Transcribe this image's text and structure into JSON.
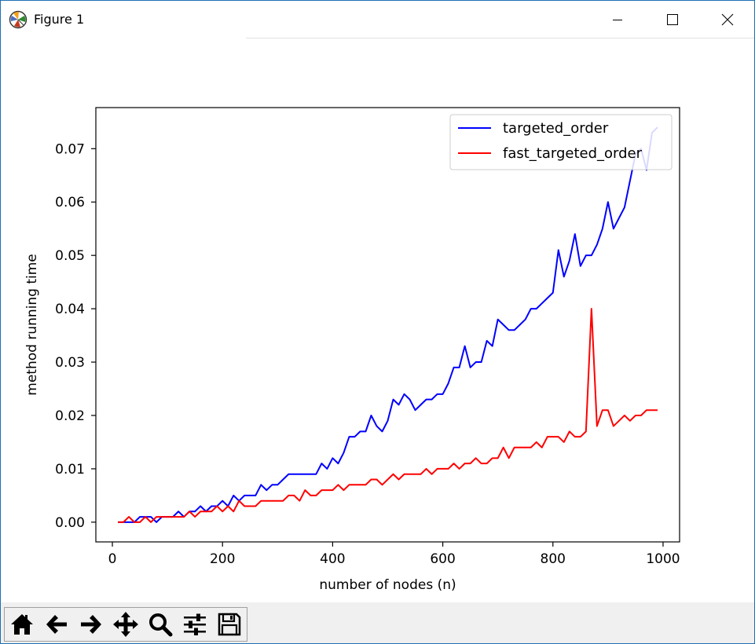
{
  "window": {
    "title": "Figure 1",
    "icons": [
      "matplotlib-logo-icon",
      "minimize-icon",
      "maximize-icon",
      "close-icon"
    ]
  },
  "toolbar": {
    "buttons": [
      {
        "name": "home",
        "icon": "home-icon"
      },
      {
        "name": "back",
        "icon": "arrow-left-icon"
      },
      {
        "name": "forward",
        "icon": "arrow-right-icon"
      },
      {
        "name": "pan",
        "icon": "move-icon"
      },
      {
        "name": "zoom",
        "icon": "magnifier-icon"
      },
      {
        "name": "configure-subplots",
        "icon": "sliders-icon"
      },
      {
        "name": "save",
        "icon": "floppy-disk-icon"
      }
    ]
  },
  "chart_data": {
    "type": "line",
    "title": "",
    "xlabel": "number of nodes (n)",
    "ylabel": "method running time",
    "xlim": [
      -30,
      1030
    ],
    "ylim": [
      -0.0037,
      0.0777
    ],
    "xticks": [
      0,
      200,
      400,
      600,
      800,
      1000
    ],
    "xtick_labels": [
      "0",
      "200",
      "400",
      "600",
      "800",
      "1000"
    ],
    "yticks": [
      0.0,
      0.01,
      0.02,
      0.03,
      0.04,
      0.05,
      0.06,
      0.07
    ],
    "ytick_labels": [
      "0.00",
      "0.01",
      "0.02",
      "0.03",
      "0.04",
      "0.05",
      "0.06",
      "0.07"
    ],
    "grid": false,
    "legend": "top-right",
    "x": [
      10,
      20,
      30,
      40,
      50,
      60,
      70,
      80,
      90,
      100,
      110,
      120,
      130,
      140,
      150,
      160,
      170,
      180,
      190,
      200,
      210,
      220,
      230,
      240,
      250,
      260,
      270,
      280,
      290,
      300,
      310,
      320,
      330,
      340,
      350,
      360,
      370,
      380,
      390,
      400,
      410,
      420,
      430,
      440,
      450,
      460,
      470,
      480,
      490,
      500,
      510,
      520,
      530,
      540,
      550,
      560,
      570,
      580,
      590,
      600,
      610,
      620,
      630,
      640,
      650,
      660,
      670,
      680,
      690,
      700,
      710,
      720,
      730,
      740,
      750,
      760,
      770,
      780,
      790,
      800,
      810,
      820,
      830,
      840,
      850,
      860,
      870,
      880,
      890,
      900,
      910,
      920,
      930,
      940,
      950,
      960,
      970,
      980,
      990
    ],
    "series": [
      {
        "name": "targeted_order",
        "color": "#0000ff",
        "values": [
          0.0,
          0.0,
          0.0,
          0.0,
          0.001,
          0.001,
          0.001,
          0.0,
          0.001,
          0.001,
          0.001,
          0.002,
          0.001,
          0.002,
          0.002,
          0.003,
          0.002,
          0.003,
          0.003,
          0.004,
          0.003,
          0.005,
          0.004,
          0.005,
          0.005,
          0.005,
          0.007,
          0.006,
          0.007,
          0.007,
          0.008,
          0.009,
          0.009,
          0.009,
          0.009,
          0.009,
          0.009,
          0.011,
          0.01,
          0.012,
          0.011,
          0.013,
          0.016,
          0.016,
          0.017,
          0.017,
          0.02,
          0.018,
          0.017,
          0.019,
          0.023,
          0.022,
          0.024,
          0.023,
          0.021,
          0.022,
          0.023,
          0.023,
          0.024,
          0.024,
          0.026,
          0.029,
          0.029,
          0.033,
          0.029,
          0.03,
          0.03,
          0.034,
          0.033,
          0.038,
          0.037,
          0.036,
          0.036,
          0.037,
          0.038,
          0.04,
          0.04,
          0.041,
          0.042,
          0.043,
          0.051,
          0.046,
          0.049,
          0.054,
          0.048,
          0.05,
          0.05,
          0.052,
          0.055,
          0.06,
          0.055,
          0.057,
          0.059,
          0.064,
          0.069,
          0.07,
          0.066,
          0.073,
          0.074
        ]
      },
      {
        "name": "fast_targeted_order",
        "color": "#ff0000",
        "values": [
          0.0,
          0.0,
          0.001,
          0.0,
          0.0,
          0.001,
          0.0,
          0.001,
          0.001,
          0.001,
          0.001,
          0.001,
          0.001,
          0.002,
          0.001,
          0.002,
          0.002,
          0.002,
          0.003,
          0.002,
          0.003,
          0.002,
          0.004,
          0.003,
          0.003,
          0.003,
          0.004,
          0.004,
          0.004,
          0.004,
          0.004,
          0.005,
          0.005,
          0.004,
          0.006,
          0.005,
          0.005,
          0.006,
          0.006,
          0.006,
          0.007,
          0.006,
          0.007,
          0.007,
          0.007,
          0.007,
          0.008,
          0.008,
          0.007,
          0.008,
          0.009,
          0.008,
          0.009,
          0.009,
          0.009,
          0.009,
          0.01,
          0.009,
          0.01,
          0.01,
          0.01,
          0.011,
          0.01,
          0.011,
          0.011,
          0.012,
          0.011,
          0.011,
          0.012,
          0.012,
          0.014,
          0.012,
          0.014,
          0.014,
          0.014,
          0.014,
          0.015,
          0.014,
          0.016,
          0.016,
          0.016,
          0.015,
          0.017,
          0.016,
          0.016,
          0.017,
          0.04,
          0.018,
          0.021,
          0.021,
          0.018,
          0.019,
          0.02,
          0.019,
          0.02,
          0.02,
          0.021,
          0.021,
          0.021
        ]
      }
    ]
  }
}
